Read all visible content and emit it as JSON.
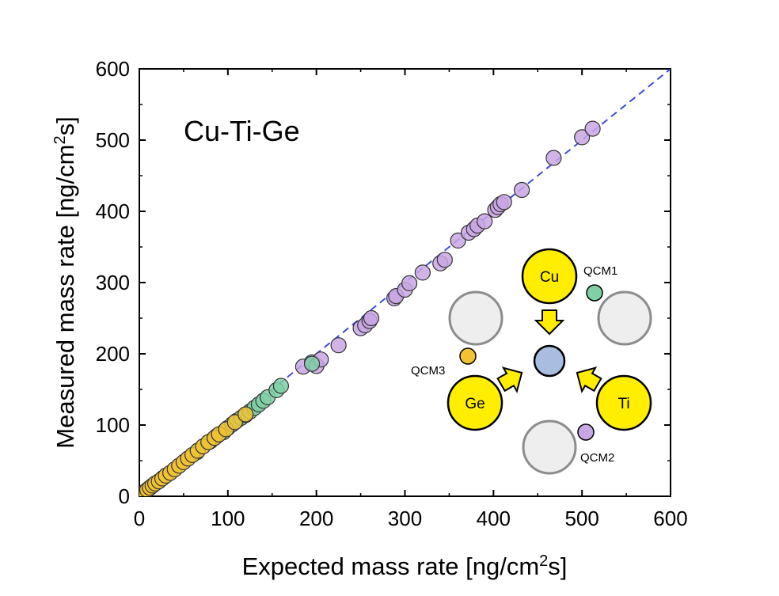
{
  "chart_data": {
    "type": "scatter",
    "title": "Cu-Ti-Ge",
    "xlabel": "Expected mass rate [ng/cm",
    "ylabel": "Measured mass rate [ng/cm",
    "unit_superscript": "2",
    "unit_suffix": "s]",
    "xlim": [
      0,
      600
    ],
    "ylim": [
      0,
      600
    ],
    "xticks": [
      0,
      100,
      200,
      300,
      400,
      500,
      600
    ],
    "yticks": [
      0,
      100,
      200,
      300,
      400,
      500,
      600
    ],
    "reference_line": {
      "style": "dashed",
      "color": "#3b4bdc",
      "slope": 1
    },
    "series": [
      {
        "name": "QCM2",
        "color": "#c9a6e4",
        "x": [
          185,
          195,
          200,
          205,
          225,
          250,
          255,
          260,
          262,
          288,
          290,
          300,
          305,
          320,
          340,
          345,
          360,
          372,
          378,
          382,
          390,
          402,
          405,
          408,
          412,
          432,
          468,
          500,
          512
        ],
        "y": [
          182,
          188,
          183,
          192,
          212,
          236,
          240,
          246,
          250,
          278,
          281,
          290,
          299,
          314,
          327,
          332,
          359,
          370,
          375,
          380,
          386,
          402,
          406,
          410,
          413,
          430,
          475,
          504,
          516
        ]
      },
      {
        "name": "QCM1",
        "color": "#7fd0a4",
        "x": [
          65,
          80,
          88,
          95,
          100,
          105,
          110,
          115,
          120,
          125,
          130,
          135,
          140,
          145,
          155,
          160,
          195
        ],
        "y": [
          62,
          77,
          85,
          90,
          96,
          101,
          106,
          110,
          114,
          119,
          124,
          129,
          134,
          139,
          149,
          155,
          186
        ]
      },
      {
        "name": "QCM3",
        "color": "#f1c232",
        "x": [
          3,
          6,
          9,
          12,
          15,
          18,
          22,
          26,
          30,
          35,
          40,
          45,
          50,
          55,
          60,
          66,
          72,
          78,
          85,
          90,
          98,
          108,
          120
        ],
        "y": [
          3,
          6,
          9,
          12,
          15,
          18,
          21,
          25,
          29,
          33,
          38,
          43,
          48,
          53,
          58,
          64,
          70,
          76,
          82,
          87,
          94,
          104,
          115
        ]
      }
    ],
    "inset": {
      "sources": [
        "Cu",
        "Ge",
        "Ti"
      ],
      "qcm_labels": [
        "QCM1",
        "QCM2",
        "QCM3"
      ],
      "colors": {
        "source": "#ffee00",
        "target": "#a8bde0",
        "empty": "#eeeeee",
        "qcm1": "#7fd0a4",
        "qcm2": "#c9a6e4",
        "qcm3": "#f1c232"
      }
    }
  }
}
